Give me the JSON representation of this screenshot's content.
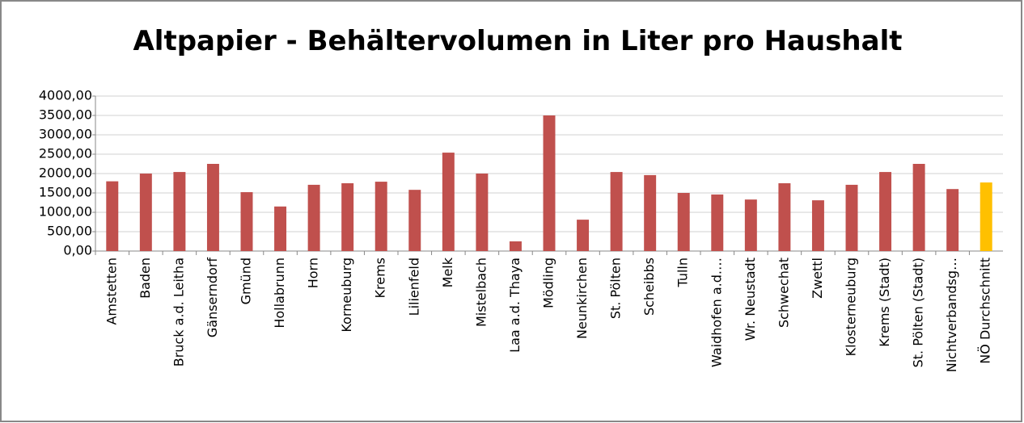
{
  "chart_data": {
    "type": "bar",
    "title": "Altpapier - Behältervolumen in Liter pro Haushalt",
    "categories": [
      "Amstetten",
      "Baden",
      "Bruck a.d. Leitha",
      "Gänserndorf",
      "Gmünd",
      "Hollabrunn",
      "Horn",
      "Korneuburg",
      "Krems",
      "Lilienfeld",
      "Melk",
      "Mistelbach",
      "Laa a.d. Thaya",
      "Mödling",
      "Neunkirchen",
      "St. Pölten",
      "Scheibbs",
      "Tulln",
      "Waidhofen a.d.…",
      "Wr. Neustadt",
      "Schwechat",
      "Zwettl",
      "Klosterneuburg",
      "Krems (Stadt)",
      "St. Pölten (Stadt)",
      "Nichtverbandsg…",
      "NÖ Durchschnitt"
    ],
    "values": [
      1800,
      2000,
      2040,
      2250,
      1520,
      1150,
      1710,
      1750,
      1790,
      1580,
      2540,
      2000,
      250,
      3500,
      810,
      2040,
      1960,
      1500,
      1460,
      1330,
      1750,
      1310,
      1710,
      2040,
      2250,
      1600,
      1770
    ],
    "colors": [
      "#c0504d",
      "#c0504d",
      "#c0504d",
      "#c0504d",
      "#c0504d",
      "#c0504d",
      "#c0504d",
      "#c0504d",
      "#c0504d",
      "#c0504d",
      "#c0504d",
      "#c0504d",
      "#c0504d",
      "#c0504d",
      "#c0504d",
      "#c0504d",
      "#c0504d",
      "#c0504d",
      "#c0504d",
      "#c0504d",
      "#c0504d",
      "#c0504d",
      "#c0504d",
      "#c0504d",
      "#c0504d",
      "#c0504d",
      "#ffc000"
    ],
    "ylim": [
      0,
      4000
    ],
    "yticks": [
      {
        "value": 0,
        "label": "0,00"
      },
      {
        "value": 500,
        "label": "500,00"
      },
      {
        "value": 1000,
        "label": "1000,00"
      },
      {
        "value": 1500,
        "label": "1500,00"
      },
      {
        "value": 2000,
        "label": "2000,00"
      },
      {
        "value": 2500,
        "label": "2500,00"
      },
      {
        "value": 3000,
        "label": "3000,00"
      },
      {
        "value": 3500,
        "label": "3500,00"
      },
      {
        "value": 4000,
        "label": "4000,00"
      }
    ],
    "grid": true
  }
}
